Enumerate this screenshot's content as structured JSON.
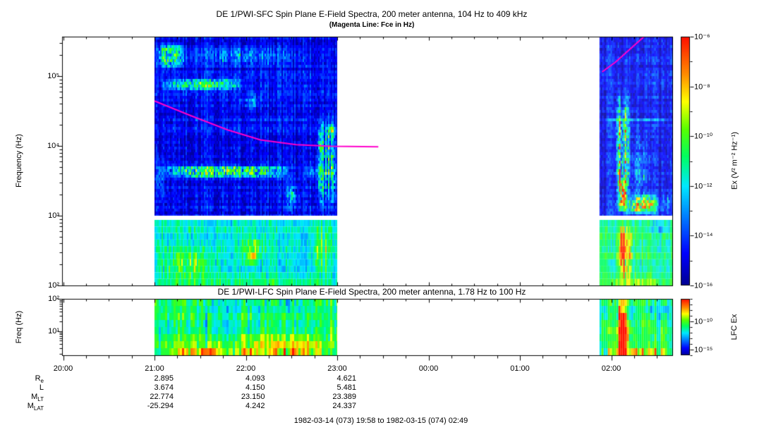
{
  "figure": {
    "sfc_title": "DE 1/PWI-SFC  Spin Plane E-Field Spectra, 200 meter antenna, 104 Hz to 409 kHz",
    "sfc_subtitle": "(Magenta Line: Fce in Hz)",
    "lfc_title": "DE 1/PWI-LFC  Spin Plane E-Field Spectra, 200 meter antenna, 1.78 Hz to 100 Hz",
    "footer": "1982-03-14 (073) 19:58 to 1982-03-15 (074) 02:49"
  },
  "chart_data": {
    "type": "heatmap",
    "description": "Two log-frequency spectrogram panels vs time (1982-03-14 19:58 to 1982-03-15 02:49); data present 21:00-23:00 and ~01:52-02:42, white gaps elsewhere",
    "panels": [
      {
        "id": "sfc",
        "ylabel": "Frequency (Hz)",
        "freq_range_hz": [
          100,
          440000
        ],
        "y_ticks": [
          {
            "f": 100000,
            "label": "10⁵"
          },
          {
            "f": 10000,
            "label": "10⁴"
          },
          {
            "f": 1000,
            "label": "10³"
          },
          {
            "f": 100,
            "label": "10²"
          }
        ],
        "colorbar": {
          "label": "Ex (V² m⁻² Hz⁻¹)",
          "range_exp": [
            -6,
            -16
          ],
          "ticks": [
            {
              "exp": -6,
              "label": "10⁻⁶"
            },
            {
              "exp": -8,
              "label": "10⁻⁸"
            },
            {
              "exp": -10,
              "label": "10⁻¹⁰"
            },
            {
              "exp": -12,
              "label": "10⁻¹²"
            },
            {
              "exp": -14,
              "label": "10⁻¹⁴"
            },
            {
              "exp": -16,
              "label": "10⁻¹⁶"
            }
          ]
        },
        "fce_lines": [
          [
            [
              21.0,
              44000
            ],
            [
              21.4,
              27000
            ],
            [
              21.8,
              17000
            ],
            [
              22.16,
              12200
            ],
            [
              22.55,
              10400
            ],
            [
              22.94,
              9900
            ],
            [
              23.45,
              9700
            ]
          ],
          [
            [
              25.9,
              115000
            ],
            [
              26.05,
              160000
            ],
            [
              26.2,
              240000
            ],
            [
              26.35,
              360000
            ],
            [
              26.45,
              470000
            ]
          ]
        ]
      },
      {
        "id": "lfc",
        "ylabel": "Freq (Hz)",
        "freq_range_hz": [
          1.78,
          100
        ],
        "y_ticks": [
          {
            "f": 100,
            "label": "10²"
          },
          {
            "f": 10,
            "label": "10¹"
          }
        ],
        "colorbar": {
          "label": "LFC Ex",
          "range_exp": [
            -6,
            -16
          ],
          "ticks": [
            {
              "exp": -10,
              "label": "10⁻¹⁰"
            },
            {
              "exp": -15,
              "label": "10⁻¹⁵"
            }
          ]
        }
      }
    ],
    "x_axis": {
      "ticks": [
        {
          "t": 20,
          "label": "20:00"
        },
        {
          "t": 21,
          "label": "21:00"
        },
        {
          "t": 22,
          "label": "22:00"
        },
        {
          "t": 23,
          "label": "23:00"
        },
        {
          "t": 24,
          "label": "00:00"
        },
        {
          "t": 25,
          "label": "01:00"
        },
        {
          "t": 26,
          "label": "02:00"
        }
      ],
      "minor_per_hour": 4,
      "t_start": 19.97,
      "t_end": 26.67
    },
    "palette": {
      "stops": [
        {
          "p": 0.0,
          "c": "#000090"
        },
        {
          "p": 0.13,
          "c": "#0000ff"
        },
        {
          "p": 0.28,
          "c": "#0080ff"
        },
        {
          "p": 0.4,
          "c": "#00e8ff"
        },
        {
          "p": 0.52,
          "c": "#00ff60"
        },
        {
          "p": 0.63,
          "c": "#58ff00"
        },
        {
          "p": 0.74,
          "c": "#ffff00"
        },
        {
          "p": 0.85,
          "c": "#ff8c00"
        },
        {
          "p": 1.0,
          "c": "#ff1000"
        }
      ],
      "magenta": "#ff00cc"
    },
    "blocks": [
      {
        "panel": "sfc-upper",
        "t": [
          21.0,
          23.0
        ],
        "base": 0.13,
        "feats": [
          {
            "t": [
              21.0,
              21.35
            ],
            "f": [
              120000,
              320000
            ],
            "a": 0.34,
            "s": 0.3,
            "n": 1
          },
          {
            "t": [
              21.2,
              22.7
            ],
            "f": [
              130000,
              300000
            ],
            "a": 0.13,
            "s": 0.4,
            "n": 1,
            "c": 1
          },
          {
            "t": [
              21.0,
              22.05
            ],
            "f": [
              60000,
              95000
            ],
            "a": 0.27,
            "s": 0.25,
            "n": 1
          },
          {
            "t": [
              21.35,
              21.8
            ],
            "f": [
              65000,
              90000
            ],
            "a": 0.17,
            "s": 0.4,
            "n": 1
          },
          {
            "t": [
              21.0,
              22.55
            ],
            "f": [
              3400,
              5400
            ],
            "a": 0.38,
            "s": 0.25,
            "n": 1
          },
          {
            "t": [
              22.55,
              23.0
            ],
            "f": [
              3400,
              5400
            ],
            "a": 0.17,
            "s": 0.4,
            "n": 1
          },
          {
            "t": [
              22.42,
              22.6
            ],
            "f": [
              1000,
              3500
            ],
            "a": 0.27,
            "s": 0.5,
            "n": 1,
            "c": 1
          },
          {
            "t": [
              22.75,
              23.0
            ],
            "f": [
              1000,
              32000
            ],
            "a": 0.28,
            "s": 0.3,
            "n": 1,
            "c": 1
          },
          {
            "t": [
              22.88,
              23.0
            ],
            "f": [
              12000,
              22000
            ],
            "a": 0.27,
            "s": 0.4,
            "n": 1
          },
          {
            "t": [
              21.0,
              23.0
            ],
            "f": [
              22000,
              26000
            ],
            "a": 0.07,
            "s": 0.2
          },
          {
            "t": [
              21.0,
              21.12
            ],
            "f": [
              1000,
              10000
            ],
            "a": 0.16,
            "s": 0.5,
            "n": 1
          },
          {
            "t": [
              21.9,
              22.2
            ],
            "f": [
              30000,
              60000
            ],
            "a": 0.12,
            "s": 0.4,
            "n": 1,
            "c": 1
          }
        ]
      },
      {
        "panel": "sfc-lower",
        "t": [
          21.0,
          23.0
        ],
        "base": 0.42,
        "feats": [
          {
            "t": [
              21.0,
              21.75
            ],
            "f": [
              100,
              380
            ],
            "a": 0.16,
            "s": 0.4,
            "n": 1
          },
          {
            "t": [
              21.9,
              22.25
            ],
            "f": [
              180,
              620
            ],
            "a": 0.18,
            "s": 0.4,
            "n": 1
          },
          {
            "t": [
              22.0,
              22.13
            ],
            "f": [
              200,
              330
            ],
            "a": 0.3,
            "s": 0.5,
            "n": 1
          },
          {
            "t": [
              22.7,
              23.0
            ],
            "f": [
              100,
              870
            ],
            "a": 0.12,
            "s": 0.4,
            "n": 1,
            "c": 1
          },
          {
            "t": [
              21.0,
              23.0
            ],
            "f": [
              100,
              150
            ],
            "a": 0.08,
            "s": 0.3
          }
        ]
      },
      {
        "panel": "sfc-upper",
        "t": [
          25.87,
          26.67
        ],
        "base": 0.13,
        "feats": [
          {
            "t": [
              26.04,
              26.22
            ],
            "f": [
              1000,
              70000
            ],
            "a": 0.36,
            "s": 0.3,
            "n": 1,
            "c": 1
          },
          {
            "t": [
              26.07,
              26.18
            ],
            "f": [
              1000,
              4000
            ],
            "a": 0.5,
            "s": 0.3,
            "n": 1
          },
          {
            "t": [
              26.15,
              26.55
            ],
            "f": [
              1000,
              2200
            ],
            "a": 0.42,
            "s": 0.35,
            "n": 1
          },
          {
            "t": [
              25.95,
              26.67
            ],
            "f": [
              1000,
              1800
            ],
            "a": 0.22,
            "s": 0.4,
            "n": 1
          },
          {
            "t": [
              26.2,
              26.45
            ],
            "f": [
              1000,
              20000
            ],
            "a": 0.17,
            "s": 0.4,
            "n": 1,
            "c": 1
          },
          {
            "t": [
              25.87,
              26.67
            ],
            "f": [
              22000,
              26000
            ],
            "a": 0.2,
            "s": 0.15
          },
          {
            "t": [
              26.55,
              26.67
            ],
            "f": [
              1000,
              2500
            ],
            "a": 0.15,
            "s": 0.4,
            "n": 1,
            "c": 1
          }
        ]
      },
      {
        "panel": "sfc-lower",
        "t": [
          25.87,
          26.67
        ],
        "base": 0.5,
        "feats": [
          {
            "t": [
              26.04,
              26.25
            ],
            "f": [
              100,
              870
            ],
            "a": 0.28,
            "s": 0.3,
            "n": 1,
            "c": 1
          },
          {
            "t": [
              26.07,
              26.2
            ],
            "f": [
              150,
              500
            ],
            "a": 0.27,
            "s": 0.4,
            "n": 1
          },
          {
            "t": [
              26.35,
              26.67
            ],
            "f": [
              450,
              870
            ],
            "a": -0.1,
            "s": 0.4,
            "n": 1
          },
          {
            "t": [
              25.87,
              26.67
            ],
            "f": [
              100,
              140
            ],
            "a": 0.1,
            "s": 0.3
          }
        ]
      },
      {
        "panel": "lfc",
        "t": [
          21.0,
          23.0
        ],
        "base": 0.52,
        "feats": [
          {
            "t": [
              21.0,
              23.0
            ],
            "f": [
              1.78,
              3.2
            ],
            "a": 0.3,
            "s": 0.2,
            "n": 1
          },
          {
            "t": [
              21.0,
              23.0
            ],
            "f": [
              3.2,
              7
            ],
            "a": 0.17,
            "s": 0.3,
            "n": 1
          },
          {
            "t": [
              21.0,
              23.0
            ],
            "f": [
              40,
              100
            ],
            "a": -0.1,
            "s": 0.3,
            "n": 1
          },
          {
            "t": [
              22.1,
              23.0
            ],
            "f": [
              1.78,
              12
            ],
            "a": 0.12,
            "s": 0.4,
            "n": 1
          },
          {
            "t": [
              21.5,
              21.65
            ],
            "f": [
              3,
              100
            ],
            "a": -0.07,
            "s": 0.5,
            "c": 1
          },
          {
            "t": [
              22.9,
              23.02
            ],
            "f": [
              1.78,
              40
            ],
            "a": 0.14,
            "s": 0.4,
            "n": 1,
            "c": 1
          }
        ]
      },
      {
        "panel": "lfc",
        "t": [
          25.87,
          26.67
        ],
        "base": 0.52,
        "feats": [
          {
            "t": [
              26.07,
              26.17
            ],
            "f": [
              1.78,
              100
            ],
            "a": 0.45,
            "s": 0.25,
            "n": 1
          },
          {
            "t": [
              26.0,
              26.3
            ],
            "f": [
              1.78,
              30
            ],
            "a": 0.2,
            "s": 0.4,
            "n": 1
          },
          {
            "t": [
              25.87,
              26.67
            ],
            "f": [
              1.78,
              3.2
            ],
            "a": 0.26,
            "s": 0.2,
            "n": 1
          },
          {
            "t": [
              26.35,
              26.67
            ],
            "f": [
              25,
              100
            ],
            "a": -0.13,
            "s": 0.3,
            "n": 1
          },
          {
            "t": [
              25.87,
              26.02
            ],
            "f": [
              3,
              40
            ],
            "a": 0.1,
            "s": 0.4,
            "n": 1
          }
        ]
      }
    ],
    "ephemeris": {
      "col_hours": [
        21,
        22,
        23
      ],
      "rows": [
        {
          "label": "R",
          "sub": "e",
          "values": [
            "2.895",
            "4.093",
            "4.621"
          ]
        },
        {
          "label": "L",
          "sub": "",
          "values": [
            "3.674",
            "4.150",
            "5.481"
          ]
        },
        {
          "label": "M",
          "sub": "LT",
          "values": [
            "22.774",
            "23.150",
            "23.389"
          ]
        },
        {
          "label": "M",
          "sub": "LAT",
          "values": [
            "-25.294",
            "4.242",
            "24.337"
          ]
        }
      ]
    }
  }
}
